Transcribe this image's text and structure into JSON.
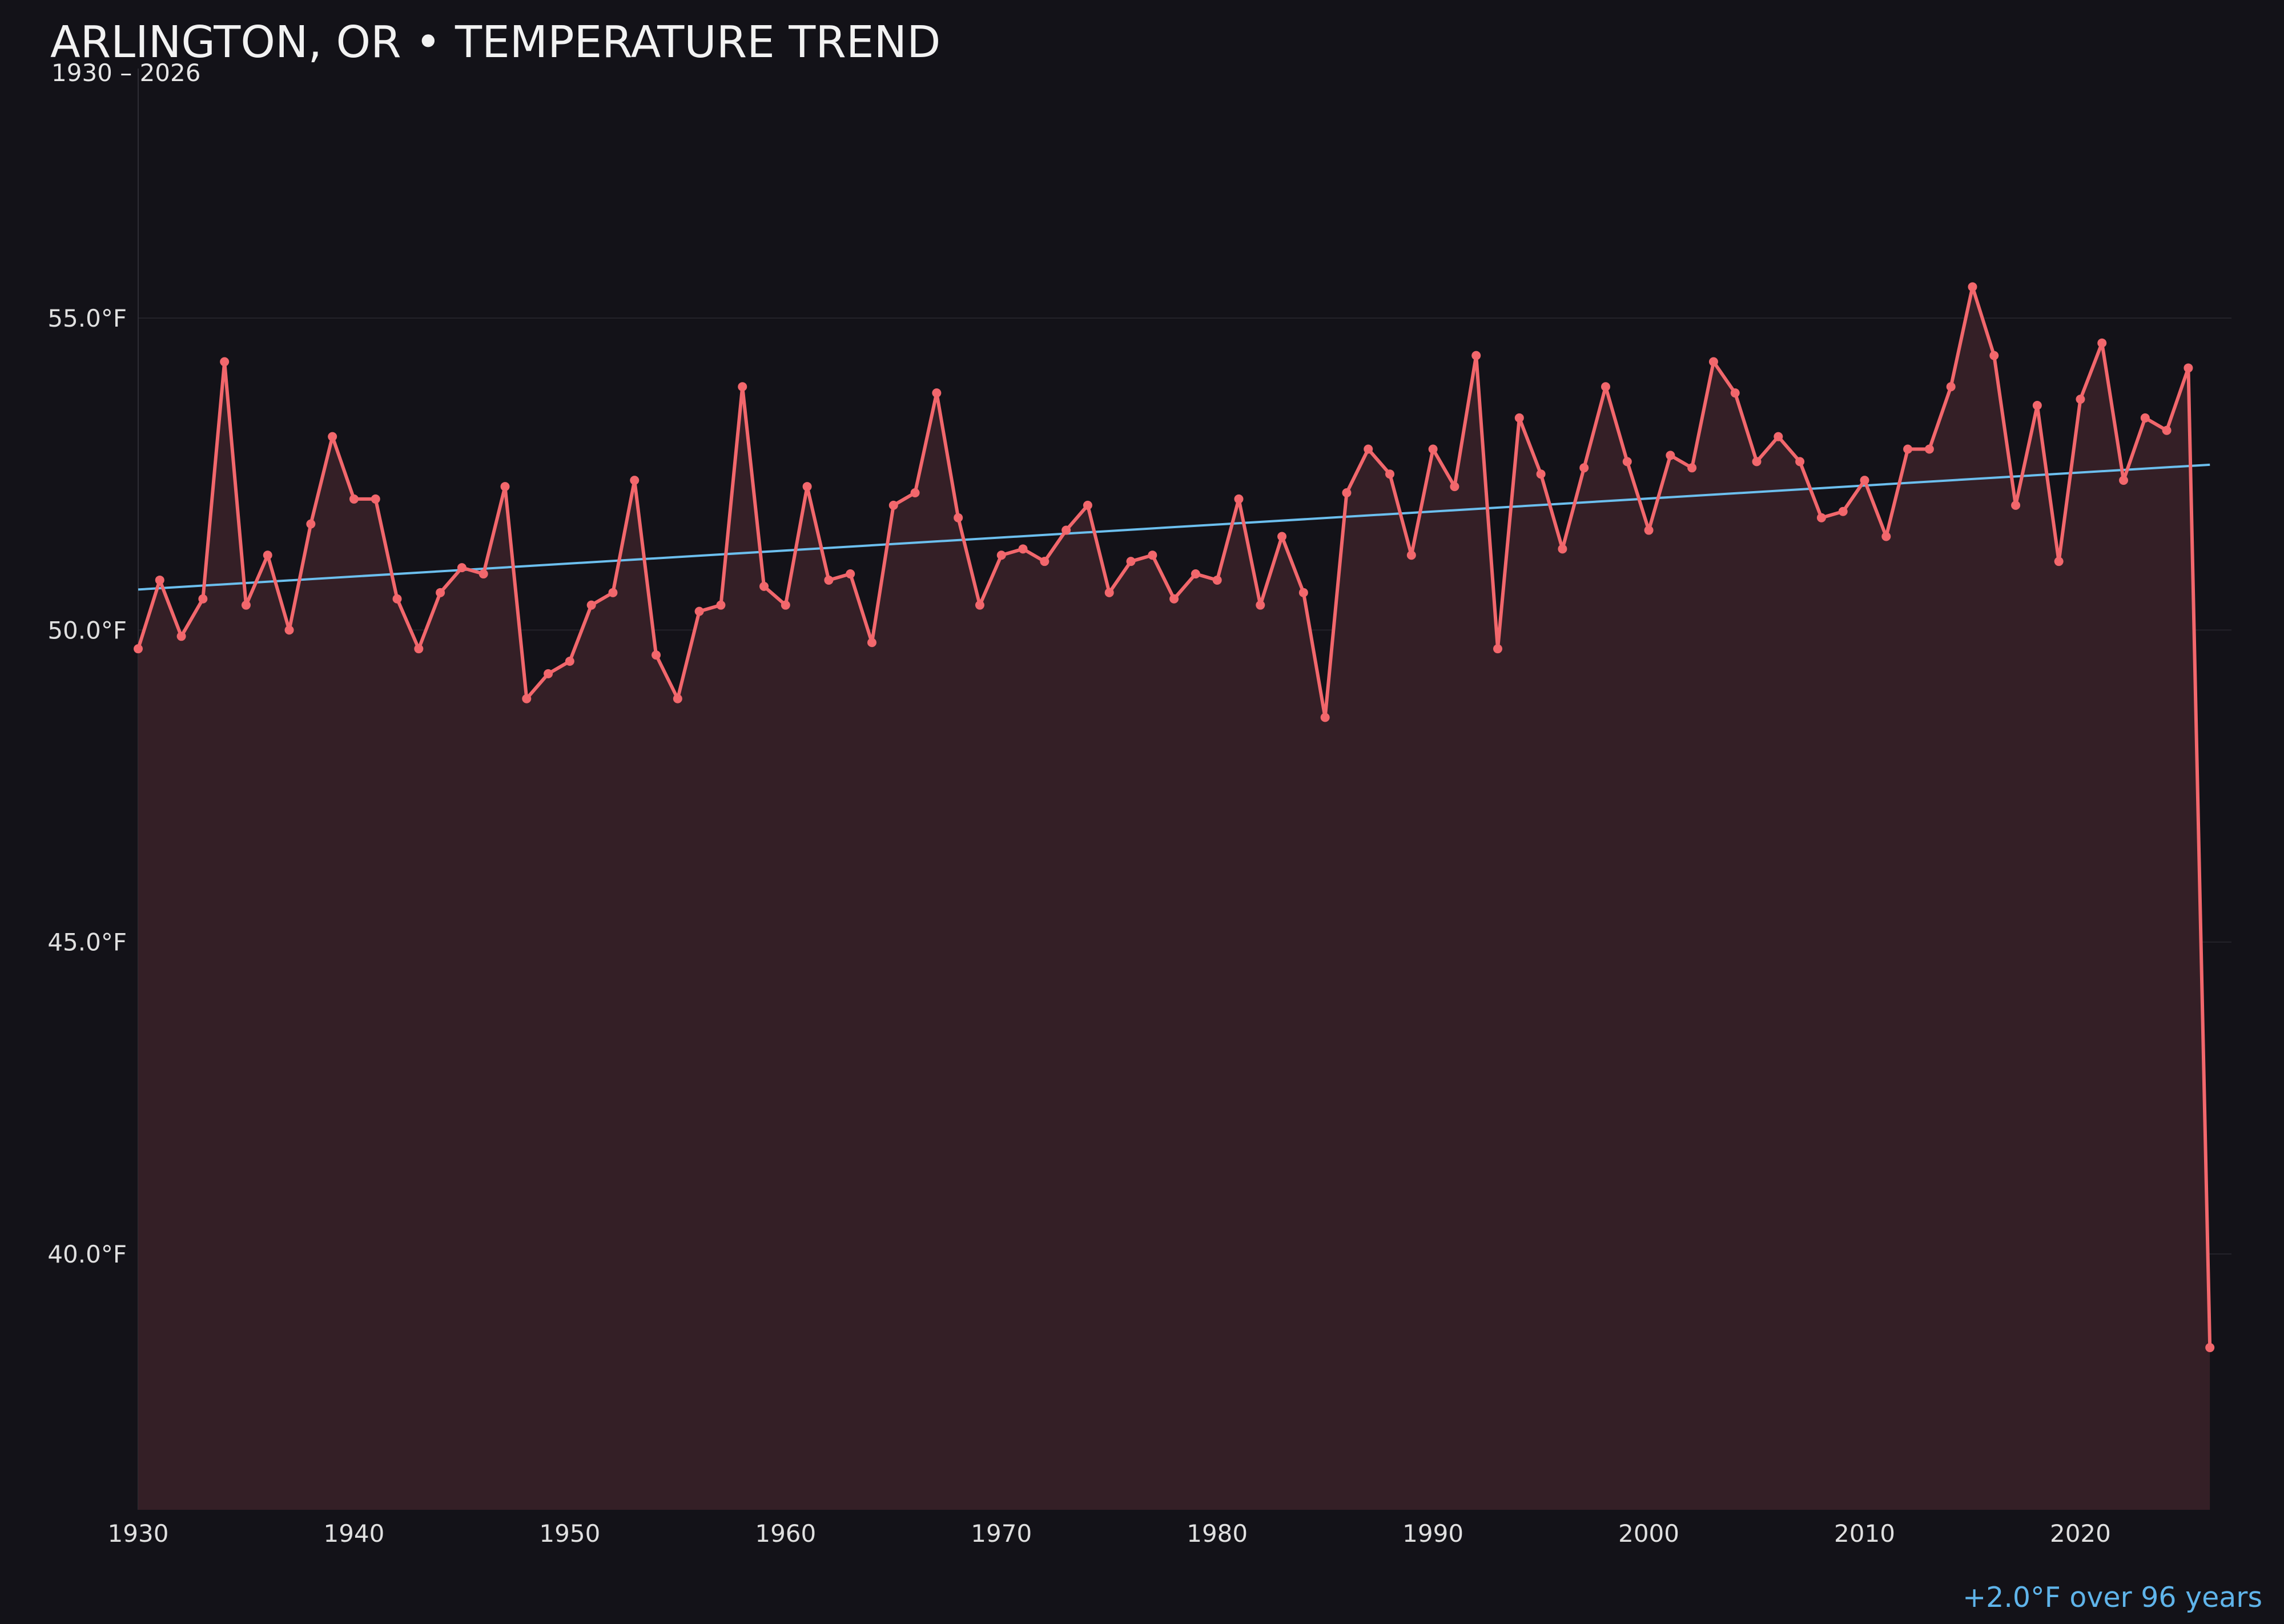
{
  "chart_data": {
    "type": "line",
    "title": "ARLINGTON, OR • TEMPERATURE TREND",
    "subtitle": "1930 – 2026",
    "xlabel": "",
    "ylabel": "",
    "xlim": [
      1930,
      2027
    ],
    "ylim": [
      35.9,
      59.0
    ],
    "x_ticks": [
      1930,
      1940,
      1950,
      1960,
      1970,
      1980,
      1990,
      2000,
      2010,
      2020
    ],
    "y_ticks": [
      {
        "value": 40,
        "label": "40.0°F"
      },
      {
        "value": 45,
        "label": "45.0°F"
      },
      {
        "value": 50,
        "label": "50.0°F"
      },
      {
        "value": 55,
        "label": "55.0°F"
      }
    ],
    "grid": "horizontal",
    "series": [
      {
        "x": [
          1930,
          1931,
          1932,
          1933,
          1934,
          1935,
          1936,
          1937,
          1938,
          1939,
          1940,
          1941,
          1942,
          1943,
          1944,
          1945,
          1946,
          1947,
          1948,
          1949,
          1950,
          1951,
          1952,
          1953,
          1954,
          1955,
          1956,
          1957,
          1958,
          1959,
          1960,
          1961,
          1962,
          1963,
          1964,
          1965,
          1966,
          1967,
          1968,
          1969,
          1970,
          1971,
          1972,
          1973,
          1974,
          1975,
          1976,
          1977,
          1978,
          1979,
          1980,
          1981,
          1982,
          1983,
          1984,
          1985,
          1986,
          1987,
          1988,
          1989,
          1990,
          1991,
          1992,
          1993,
          1994,
          1995,
          1996,
          1997,
          1998,
          1999,
          2000,
          2001,
          2002,
          2003,
          2004,
          2005,
          2006,
          2007,
          2008,
          2009,
          2010,
          2011,
          2012,
          2013,
          2014,
          2015,
          2016,
          2017,
          2018,
          2019,
          2020,
          2021,
          2022,
          2023,
          2024,
          2025,
          2026
        ],
        "values": [
          49.7,
          50.8,
          49.9,
          50.5,
          54.3,
          50.4,
          51.2,
          50.0,
          51.7,
          53.1,
          52.1,
          52.1,
          50.5,
          49.7,
          50.6,
          51.0,
          50.9,
          52.3,
          48.9,
          49.3,
          49.5,
          50.4,
          50.6,
          52.4,
          49.6,
          48.9,
          50.3,
          50.4,
          53.9,
          50.7,
          50.4,
          52.3,
          50.8,
          50.9,
          49.8,
          52.0,
          52.2,
          53.8,
          51.8,
          50.4,
          51.2,
          51.3,
          51.1,
          51.6,
          52.0,
          50.6,
          51.1,
          51.2,
          50.5,
          50.9,
          50.8,
          52.1,
          50.4,
          51.5,
          50.6,
          48.6,
          52.2,
          52.9,
          52.5,
          51.2,
          52.9,
          52.3,
          54.4,
          49.7,
          53.4,
          52.5,
          51.3,
          52.6,
          53.9,
          52.7,
          51.6,
          52.8,
          52.6,
          54.3,
          53.8,
          52.7,
          53.1,
          52.7,
          51.8,
          51.9,
          52.4,
          51.5,
          52.9,
          52.9,
          53.9,
          55.5,
          54.4,
          52.0,
          53.6,
          51.1,
          53.7,
          54.6,
          52.4,
          53.4,
          53.2,
          54.2,
          38.5
        ],
        "color": "#f2676c"
      }
    ],
    "trend_line": {
      "x": [
        1930,
        2026
      ],
      "values": [
        50.65,
        52.65
      ],
      "color": "#6cbfee"
    },
    "fill_color": "#341f26",
    "background": "#131218",
    "annotation": "+2.0°F over 96 years"
  }
}
